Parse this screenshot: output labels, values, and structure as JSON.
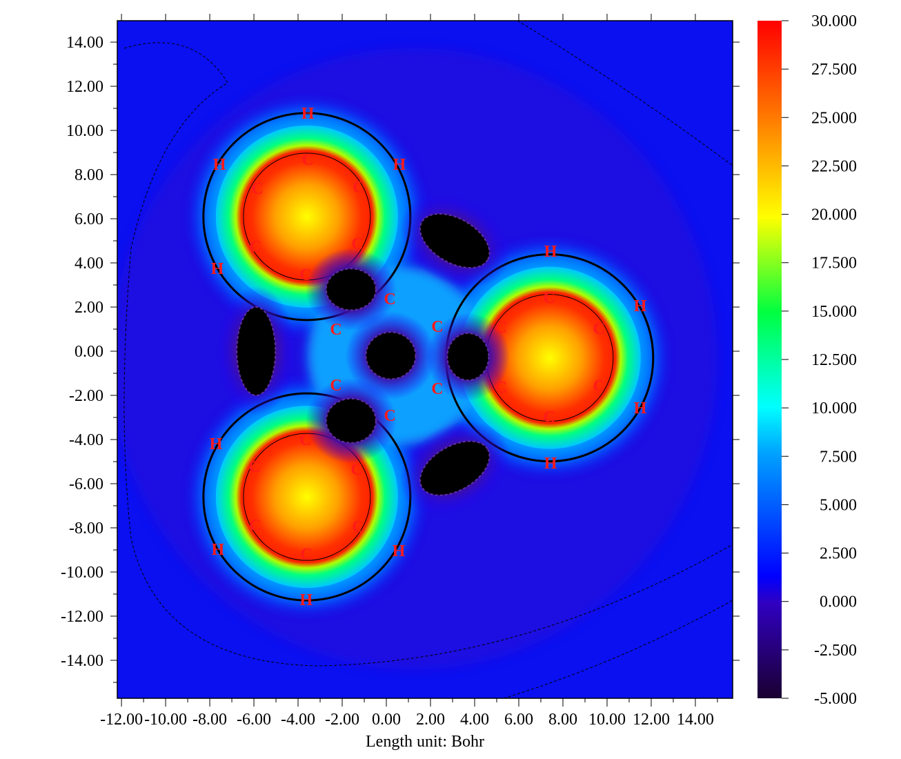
{
  "chart_data": {
    "type": "heatmap",
    "title": "",
    "xlabel": "Length unit: Bohr",
    "ylabel": "",
    "xlim": [
      -12.19,
      15.69
    ],
    "ylim": [
      -15.72,
      14.97
    ],
    "x_ticks": [
      "-12.00",
      "-10.00",
      "-8.00",
      "-6.00",
      "-4.00",
      "-2.00",
      "0.00",
      "2.00",
      "4.00",
      "6.00",
      "8.00",
      "10.00",
      "12.00",
      "14.00"
    ],
    "x_tick_values": [
      -12,
      -10,
      -8,
      -6,
      -4,
      -2,
      0,
      2,
      4,
      6,
      8,
      10,
      12,
      14
    ],
    "y_ticks": [
      "14.00",
      "12.00",
      "10.00",
      "8.00",
      "6.00",
      "4.00",
      "2.00",
      "0.00",
      "-2.00",
      "-4.00",
      "-6.00",
      "-8.00",
      "-10.00",
      "-12.00",
      "-14.00"
    ],
    "y_tick_values": [
      14,
      12,
      10,
      8,
      6,
      4,
      2,
      0,
      -2,
      -4,
      -6,
      -8,
      -10,
      -12,
      -14
    ],
    "colorbar": {
      "range": [
        -5,
        30
      ],
      "labels": [
        "30.000",
        "27.500",
        "25.000",
        "22.500",
        "20.000",
        "17.500",
        "15.000",
        "12.500",
        "10.000",
        "7.500",
        "5.000",
        "2.500",
        "0.000",
        "-2.500",
        "-5.000"
      ],
      "values": [
        30,
        27.5,
        25,
        22.5,
        20,
        17.5,
        15,
        12.5,
        10,
        7.5,
        5,
        2.5,
        0,
        -2.5,
        -5
      ],
      "colors": [
        "#1a0030",
        "#0000ff",
        "#00ffff",
        "#00ff00",
        "#ffff00",
        "#ff0000"
      ]
    },
    "atoms": [
      {
        "el": "C",
        "x": -3.56,
        "y": 8.72
      },
      {
        "el": "C",
        "x": -5.84,
        "y": 7.41
      },
      {
        "el": "C",
        "x": -1.25,
        "y": 7.47
      },
      {
        "el": "C",
        "x": -5.94,
        "y": 4.78
      },
      {
        "el": "C",
        "x": -1.31,
        "y": 4.91
      },
      {
        "el": "C",
        "x": -3.66,
        "y": 3.5
      },
      {
        "el": "H",
        "x": -3.56,
        "y": 10.81
      },
      {
        "el": "H",
        "x": -7.56,
        "y": 8.5
      },
      {
        "el": "H",
        "x": 0.59,
        "y": 8.5
      },
      {
        "el": "H",
        "x": -7.66,
        "y": 3.78
      },
      {
        "el": "C",
        "x": 7.38,
        "y": 2.47
      },
      {
        "el": "C",
        "x": 5.19,
        "y": 1.13
      },
      {
        "el": "C",
        "x": 9.63,
        "y": 1.06
      },
      {
        "el": "C",
        "x": 5.19,
        "y": -1.59
      },
      {
        "el": "C",
        "x": 9.63,
        "y": -1.53
      },
      {
        "el": "C",
        "x": 7.38,
        "y": -2.94
      },
      {
        "el": "H",
        "x": 7.44,
        "y": 4.56
      },
      {
        "el": "H",
        "x": 11.5,
        "y": 2.09
      },
      {
        "el": "H",
        "x": 11.5,
        "y": -2.53
      },
      {
        "el": "H",
        "x": 7.44,
        "y": -5.03
      },
      {
        "el": "C",
        "x": -3.66,
        "y": -3.97
      },
      {
        "el": "C",
        "x": -5.97,
        "y": -5.19
      },
      {
        "el": "C",
        "x": -1.34,
        "y": -5.31
      },
      {
        "el": "C",
        "x": -5.94,
        "y": -7.84
      },
      {
        "el": "C",
        "x": -1.28,
        "y": -7.91
      },
      {
        "el": "C",
        "x": -3.63,
        "y": -9.16
      },
      {
        "el": "H",
        "x": -7.72,
        "y": -4.16
      },
      {
        "el": "H",
        "x": -7.63,
        "y": -8.94
      },
      {
        "el": "H",
        "x": 0.56,
        "y": -9.0
      },
      {
        "el": "H",
        "x": -3.63,
        "y": -11.22
      },
      {
        "el": "C",
        "x": 0.16,
        "y": 2.41
      },
      {
        "el": "C",
        "x": 2.31,
        "y": 1.16
      },
      {
        "el": "C",
        "x": -2.28,
        "y": 1.03
      },
      {
        "el": "C",
        "x": -2.28,
        "y": -1.5
      },
      {
        "el": "C",
        "x": 2.31,
        "y": -1.66
      },
      {
        "el": "C",
        "x": 0.16,
        "y": -2.88
      }
    ],
    "ring_centers": [
      {
        "x": -3.6,
        "y": 6.1
      },
      {
        "x": 7.4,
        "y": -0.3
      },
      {
        "x": -3.6,
        "y": -6.6
      }
    ],
    "depletion_regions": [
      {
        "x": -5.9,
        "y": 0.0
      },
      {
        "x": 3.1,
        "y": 5.0
      },
      {
        "x": 3.1,
        "y": -5.3
      },
      {
        "x": -1.6,
        "y": 2.8
      },
      {
        "x": 0.2,
        "y": -0.2
      },
      {
        "x": 3.7,
        "y": -0.25
      },
      {
        "x": -1.6,
        "y": -3.15
      }
    ]
  }
}
